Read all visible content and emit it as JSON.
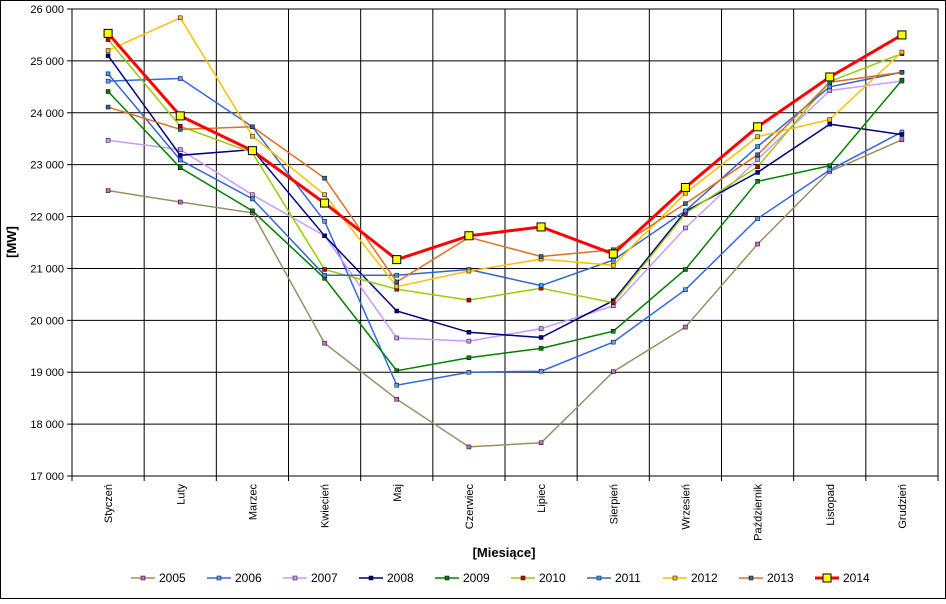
{
  "chart_data": {
    "type": "line",
    "xlabel": "[Miesiące]",
    "ylabel": "[MW]",
    "ylim": [
      17000,
      26000
    ],
    "yticks": [
      17000,
      18000,
      19000,
      20000,
      21000,
      22000,
      23000,
      24000,
      25000,
      26000
    ],
    "ytick_labels": [
      "17 000",
      "18 000",
      "19 000",
      "20 000",
      "21 000",
      "22 000",
      "23 000",
      "24 000",
      "25 000",
      "26 000"
    ],
    "categories": [
      "Styczeń",
      "Luty",
      "Marzec",
      "Kwiecień",
      "Maj",
      "Czerwiec",
      "Lipiec",
      "Sierpień",
      "Wrzesień",
      "Październik",
      "Listopad",
      "Grudzień"
    ],
    "grid": "vertical and horizontal",
    "legend": "bottom",
    "series": [
      {
        "name": "2005",
        "color": "#9B8F62",
        "marker": "#CC66CC",
        "values": [
          22500,
          22280,
          22070,
          19560,
          18480,
          17560,
          17640,
          19010,
          19870,
          21470,
          22870,
          23480
        ]
      },
      {
        "name": "2006",
        "color": "#3366E6",
        "marker": "#6699FF",
        "values": [
          24610,
          24660,
          23730,
          21910,
          18750,
          19000,
          19020,
          19580,
          20590,
          21960,
          22900,
          23630
        ]
      },
      {
        "name": "2007",
        "color": "#CC99FF",
        "marker": "#CC99FF",
        "values": [
          23470,
          23290,
          22420,
          21630,
          19660,
          19600,
          19840,
          20280,
          21780,
          23100,
          24430,
          24610
        ]
      },
      {
        "name": "2008",
        "color": "#000080",
        "marker": "#000080",
        "values": [
          25100,
          23180,
          23290,
          21630,
          20180,
          19770,
          19670,
          20380,
          22100,
          22850,
          23780,
          23580
        ]
      },
      {
        "name": "2009",
        "color": "#008000",
        "marker": "#008000",
        "values": [
          24410,
          22940,
          22110,
          20810,
          19030,
          19280,
          19460,
          19790,
          20980,
          22680,
          22980,
          24630
        ]
      },
      {
        "name": "2010",
        "color": "#99CC00",
        "marker": "#CC0000",
        "values": [
          25410,
          23740,
          23230,
          20980,
          20600,
          20390,
          20620,
          20340,
          22060,
          22960,
          24600,
          25140
        ]
      },
      {
        "name": "2011",
        "color": "#3366CC",
        "marker": "#3399FF",
        "values": [
          24750,
          23090,
          22340,
          20870,
          20870,
          20980,
          20670,
          21160,
          22110,
          23350,
          24500,
          24780
        ]
      },
      {
        "name": "2012",
        "color": "#FFC000",
        "marker": "#FFC000",
        "values": [
          25200,
          25830,
          23550,
          22420,
          20650,
          20950,
          21180,
          21060,
          22450,
          23540,
          23870,
          25170
        ]
      },
      {
        "name": "2013",
        "color": "#E07020",
        "marker": "#336699",
        "values": [
          24110,
          23680,
          23730,
          22740,
          20740,
          21600,
          21230,
          21360,
          22250,
          23190,
          24590,
          24780
        ]
      },
      {
        "name": "2014",
        "color": "#FF0000",
        "marker": "#FFFF00",
        "values": [
          25530,
          23940,
          23270,
          22260,
          21170,
          21630,
          21800,
          21280,
          22560,
          23730,
          24690,
          25500
        ]
      }
    ]
  }
}
